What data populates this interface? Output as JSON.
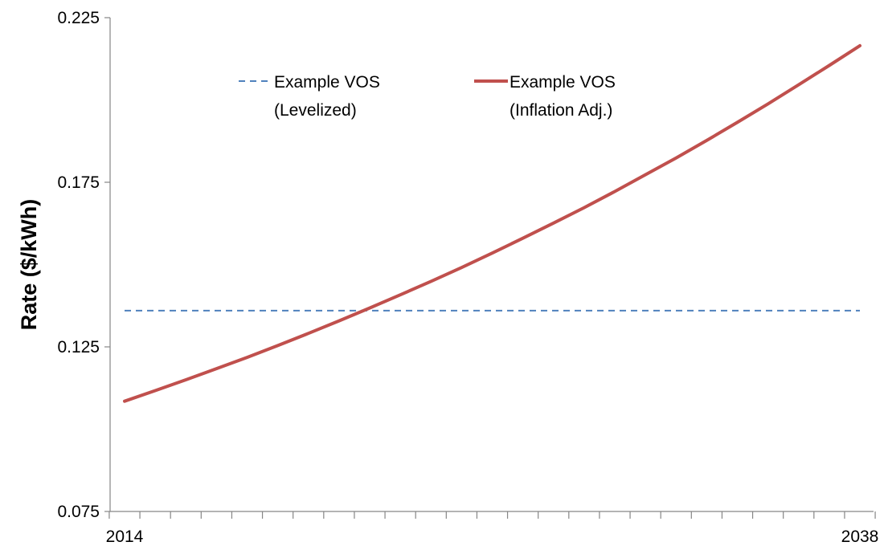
{
  "chart_data": {
    "type": "line",
    "title": "",
    "xlabel": "",
    "ylabel": "Rate ($/kWh)",
    "x_range": [
      2014,
      2038
    ],
    "x_tick_labels": [
      "2014",
      "2038"
    ],
    "ylim": [
      0.075,
      0.225
    ],
    "y_tick_labels": [
      "0.075",
      "0.125",
      "0.175",
      "0.225"
    ],
    "grid": false,
    "legend_position": "top-center",
    "series": [
      {
        "name": "Example VOS (Levelized)",
        "legend_lines": [
          "Example VOS",
          "(Levelized)"
        ],
        "color": "#4F81BD",
        "style": "dashed",
        "x": [
          2014,
          2038
        ],
        "y": [
          0.136,
          0.136
        ]
      },
      {
        "name": "Example VOS (Inflation Adj.)",
        "legend_lines": [
          "Example VOS",
          "(Inflation Adj.)"
        ],
        "color": "#C0504D",
        "style": "solid",
        "x": [
          2014,
          2015,
          2016,
          2017,
          2018,
          2019,
          2020,
          2021,
          2022,
          2023,
          2024,
          2025,
          2026,
          2027,
          2028,
          2029,
          2030,
          2031,
          2032,
          2033,
          2034,
          2035,
          2036,
          2037,
          2038
        ],
        "y": [
          0.1085,
          0.1117,
          0.115,
          0.1184,
          0.1218,
          0.1254,
          0.1291,
          0.1329,
          0.1368,
          0.1408,
          0.1449,
          0.1491,
          0.1535,
          0.158,
          0.1626,
          0.1673,
          0.1722,
          0.1773,
          0.1824,
          0.1877,
          0.1932,
          0.1988,
          0.2046,
          0.2105,
          0.2165
        ]
      }
    ]
  }
}
